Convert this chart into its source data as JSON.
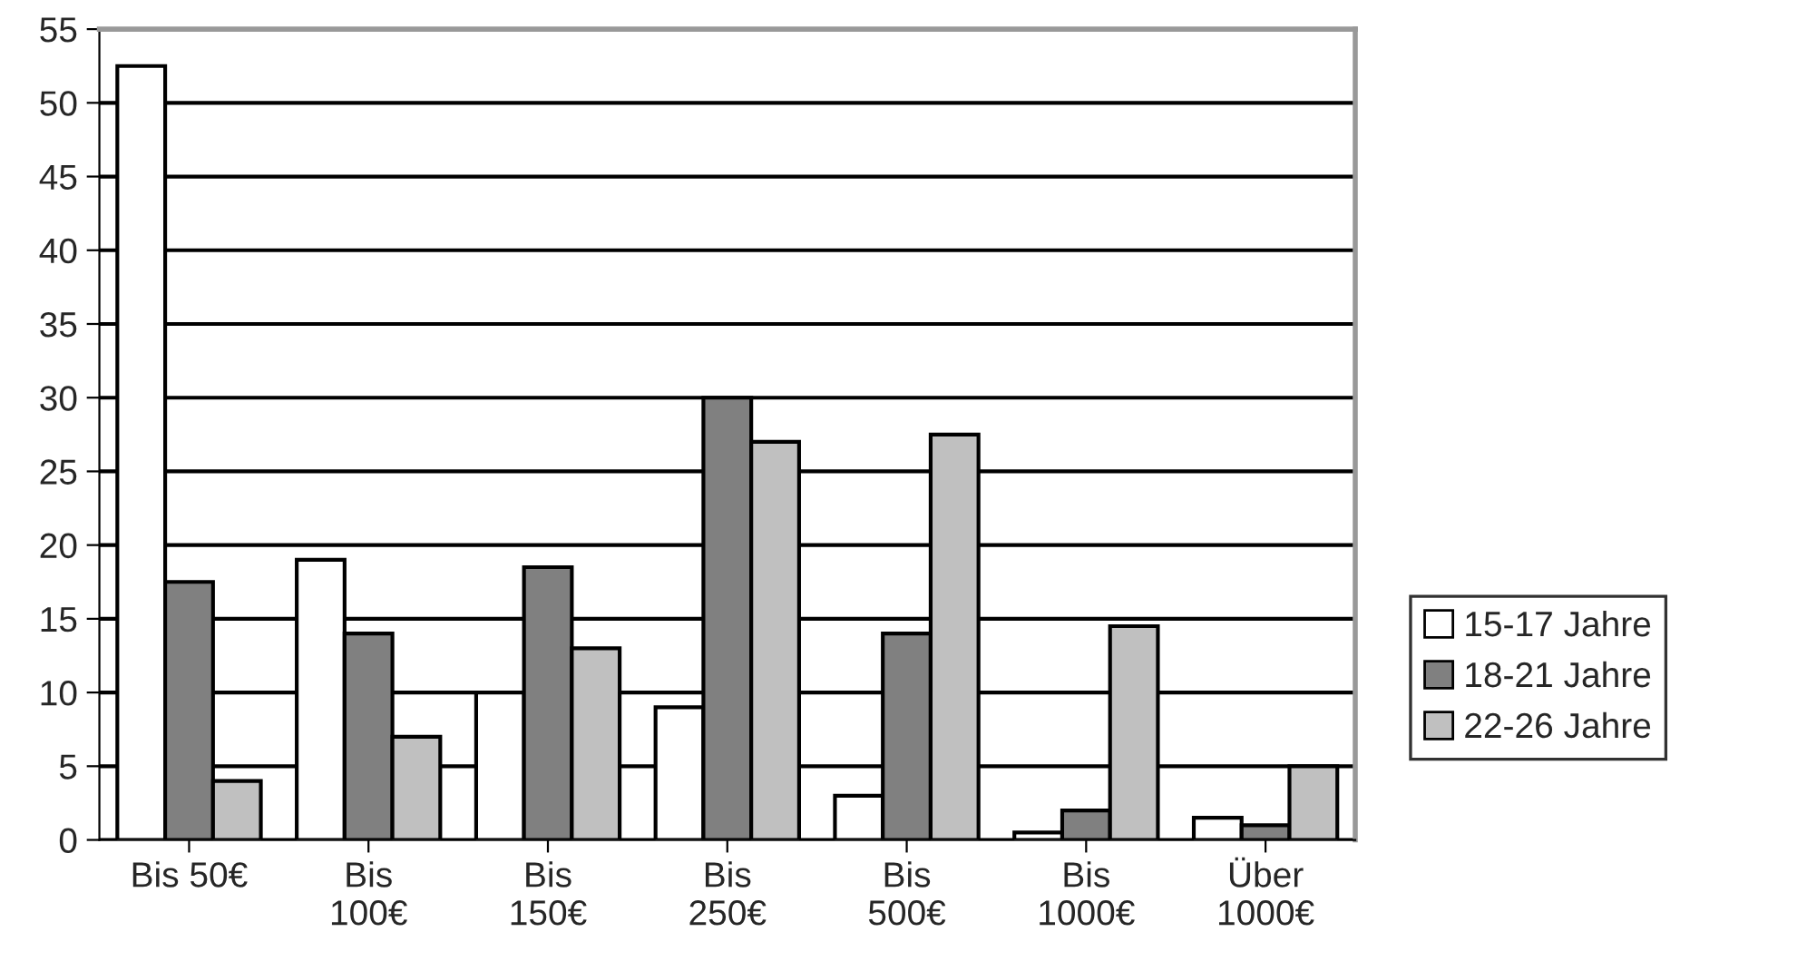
{
  "chart_data": {
    "type": "bar",
    "categories": [
      "Bis 50€",
      "Bis\n100€",
      "Bis\n150€",
      "Bis\n250€",
      "Bis\n500€",
      "Bis\n1000€",
      "Über\n1000€"
    ],
    "series": [
      {
        "name": "15-17 Jahre",
        "color": "#ffffff",
        "values": [
          52.5,
          19,
          10,
          9,
          3,
          0.5,
          1.5
        ]
      },
      {
        "name": "18-21 Jahre",
        "color": "#808080",
        "values": [
          17.5,
          14,
          18.5,
          30,
          14,
          2,
          1
        ]
      },
      {
        "name": "22-26 Jahre",
        "color": "#c0c0c0",
        "values": [
          4,
          7,
          13,
          27,
          27.5,
          14.5,
          5
        ]
      }
    ],
    "ylim": [
      0,
      55
    ],
    "yticks": [
      0,
      5,
      10,
      15,
      20,
      25,
      30,
      35,
      40,
      45,
      50,
      55
    ],
    "grid": "y",
    "legend": "right"
  }
}
